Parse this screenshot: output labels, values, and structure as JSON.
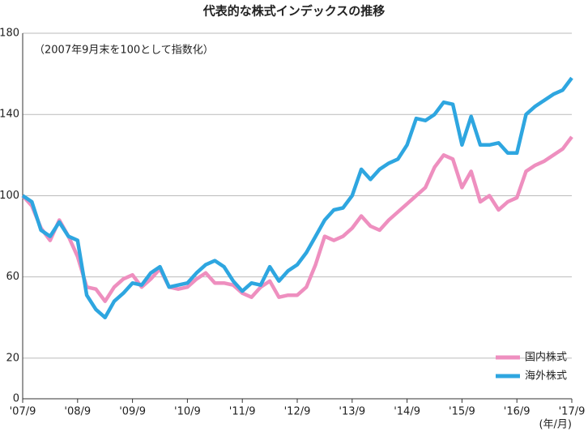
{
  "chart_data": {
    "type": "line",
    "title": "代表的な株式インデックスの推移",
    "subtitle": "（2007年9月末を100として指数化）",
    "x_unit": "(年/月)",
    "xticks": [
      "'07/9",
      "'08/9",
      "'09/9",
      "'10/9",
      "'11/9",
      "'12/9",
      "'13/9",
      "'14/9",
      "'15/9",
      "'16/9",
      "'17/9"
    ],
    "ylim": [
      0,
      180
    ],
    "yticks": [
      0,
      20,
      60,
      100,
      140,
      180
    ],
    "grid": true,
    "legend": "lower right",
    "series": [
      {
        "name": "国内株式",
        "color": "#ee8fbf",
        "values": [
          100,
          95,
          84,
          78,
          88,
          80,
          70,
          55,
          54,
          48,
          55,
          59,
          61,
          55,
          59,
          64,
          55,
          54,
          55,
          59,
          62,
          57,
          57,
          56,
          52,
          50,
          55,
          58,
          50,
          51,
          51,
          55,
          66,
          80,
          78,
          80,
          84,
          90,
          85,
          83,
          88,
          92,
          96,
          100,
          104,
          114,
          120,
          118,
          104,
          112,
          97,
          100,
          93,
          97,
          99,
          112,
          115,
          117,
          120,
          123,
          129
        ]
      },
      {
        "name": "海外株式",
        "color": "#2ea6e0",
        "values": [
          100,
          97,
          83,
          80,
          87,
          80,
          78,
          51,
          44,
          40,
          48,
          52,
          57,
          56,
          62,
          65,
          55,
          56,
          57,
          62,
          66,
          68,
          65,
          58,
          53,
          57,
          56,
          65,
          58,
          63,
          66,
          72,
          80,
          88,
          93,
          94,
          100,
          113,
          108,
          113,
          116,
          118,
          125,
          138,
          137,
          140,
          146,
          145,
          125,
          139,
          125,
          125,
          126,
          121,
          121,
          140,
          144,
          147,
          150,
          152,
          158
        ]
      }
    ]
  }
}
